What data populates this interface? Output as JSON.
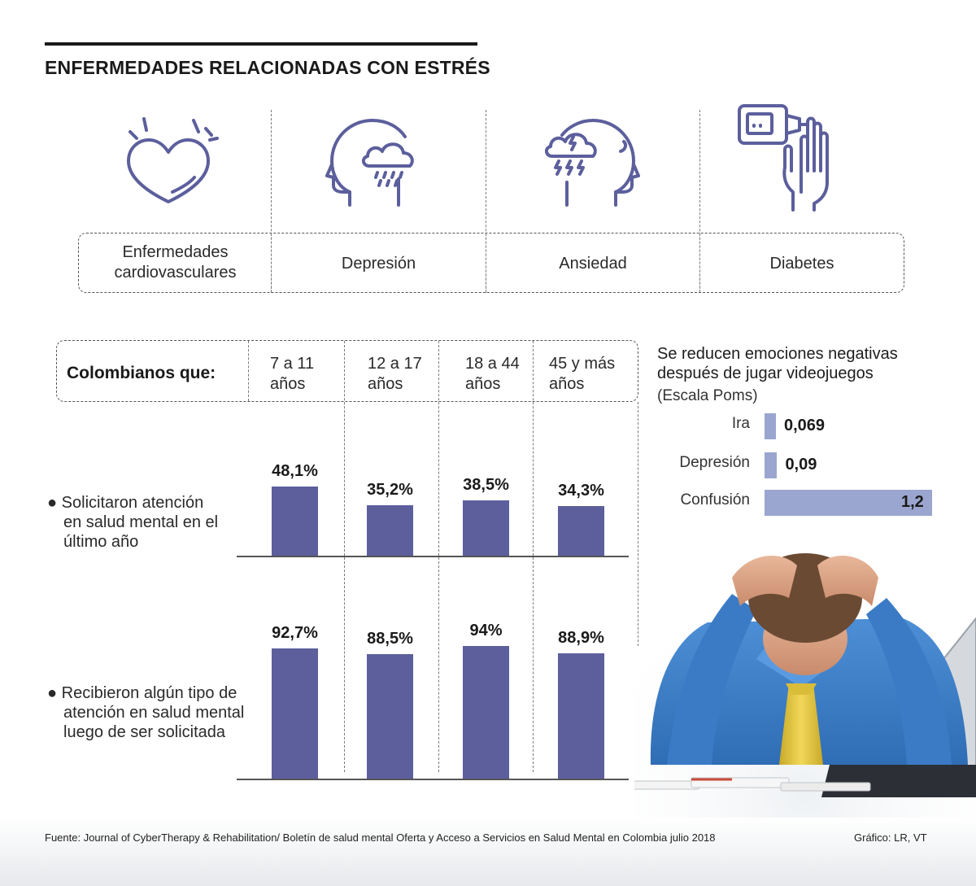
{
  "title": "ENFERMEDADES RELACIONADAS CON ESTRÉS",
  "diseases": [
    {
      "label": "Enfermedades cardiovasculares",
      "line1": "Enfermedades",
      "line2": "cardiovasculares",
      "icon": "heart-icon"
    },
    {
      "label": "Depresión",
      "icon": "head-rain-cloud-icon"
    },
    {
      "label": "Ansiedad",
      "icon": "head-storm-cloud-icon"
    },
    {
      "label": "Diabetes",
      "icon": "glucometer-hand-icon"
    }
  ],
  "table": {
    "row_header": "Colombianos que:",
    "age_groups": [
      {
        "line1": "7 a 11",
        "line2": "años"
      },
      {
        "line1": "12 a 17",
        "line2": "años"
      },
      {
        "line1": "18 a 44",
        "line2": "años"
      },
      {
        "line1": "45 y más",
        "line2": "años"
      }
    ],
    "rows": [
      {
        "lines": [
          "Solicitaron atención",
          "en salud mental en el",
          "último año"
        ]
      },
      {
        "lines": [
          "Recibieron algún tipo de",
          "atención en salud mental",
          "luego de ser solicitada"
        ]
      }
    ]
  },
  "chart_data": [
    {
      "type": "bar",
      "categories": [
        "7 a 11 años",
        "12 a 17 años",
        "18 a 44 años",
        "45 y más años"
      ],
      "series": [
        {
          "name": "Solicitaron atención en salud mental en el último año",
          "values": [
            48.1,
            35.2,
            38.5,
            34.3
          ]
        }
      ],
      "labels": [
        "48,1%",
        "35,2%",
        "38,5%",
        "34,3%"
      ],
      "unit": "%",
      "color": "#5c5f9c"
    },
    {
      "type": "bar",
      "categories": [
        "7 a 11 años",
        "12 a 17 años",
        "18 a 44 años",
        "45 y más años"
      ],
      "series": [
        {
          "name": "Recibieron algún tipo de atención en salud mental luego de ser solicitada",
          "values": [
            92.7,
            88.5,
            94,
            88.9
          ]
        }
      ],
      "labels": [
        "92,7%",
        "88,5%",
        "94%",
        "88,9%"
      ],
      "unit": "%",
      "color": "#5c5f9c"
    },
    {
      "type": "bar",
      "orientation": "horizontal",
      "title_line1": "Se reducen emociones negativas",
      "title_line2": "después de jugar videojuegos",
      "subtitle": "(Escala Poms)",
      "categories": [
        "Ira",
        "Depresión",
        "Confusión"
      ],
      "values": [
        0.069,
        0.09,
        1.2
      ],
      "labels": [
        "0,069",
        "0,09",
        "1,2"
      ],
      "color": "#9aa6cf"
    }
  ],
  "footer": {
    "source": "Fuente: Journal of CyberTherapy & Rehabilitation/ Boletín de salud mental Oferta y Acceso a Servicios en Salud Mental en Colombia julio 2018",
    "credit": "Gráfico: LR, VT"
  },
  "colors": {
    "bar": "#5c5f9c",
    "bar_light": "#9aa6cf",
    "icon": "#5c5f9c",
    "shirt": "#3f7fc8",
    "tie": "#e2c640"
  }
}
